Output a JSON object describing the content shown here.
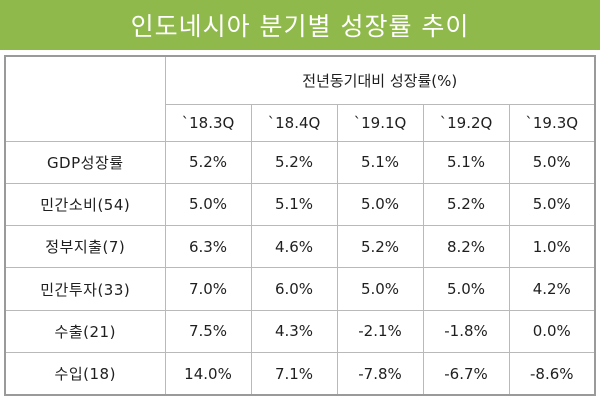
{
  "title": "인도네시아 분기별 성장률 추이",
  "chart_data": {
    "type": "table",
    "title": "인도네시아 분기별 성장률 추이",
    "group_header": "전년동기대비 성장률(%)",
    "columns": [
      "`18.3Q",
      "`18.4Q",
      "`19.1Q",
      "`19.2Q",
      "`19.3Q"
    ],
    "rows": [
      {
        "label": "GDP성장률",
        "values": [
          "5.2%",
          "5.2%",
          "5.1%",
          "5.1%",
          "5.0%"
        ]
      },
      {
        "label": "민간소비(54)",
        "values": [
          "5.0%",
          "5.1%",
          "5.0%",
          "5.2%",
          "5.0%"
        ]
      },
      {
        "label": "정부지출(7)",
        "values": [
          "6.3%",
          "4.6%",
          "5.2%",
          "8.2%",
          "1.0%"
        ]
      },
      {
        "label": "민간투자(33)",
        "values": [
          "7.0%",
          "6.0%",
          "5.0%",
          "5.0%",
          "4.2%"
        ]
      },
      {
        "label": "수출(21)",
        "values": [
          "7.5%",
          "4.3%",
          "-2.1%",
          "-1.8%",
          "0.0%"
        ]
      },
      {
        "label": "수입(18)",
        "values": [
          "14.0%",
          "7.1%",
          "-7.8%",
          "-6.7%",
          "-8.6%"
        ]
      }
    ]
  },
  "colors": {
    "title_bar": "#8fb94b",
    "title_text": "#ffffff",
    "grid_line": "#b9b9b9",
    "outer_border": "#9a9a9a",
    "text": "#1f1f1f"
  }
}
